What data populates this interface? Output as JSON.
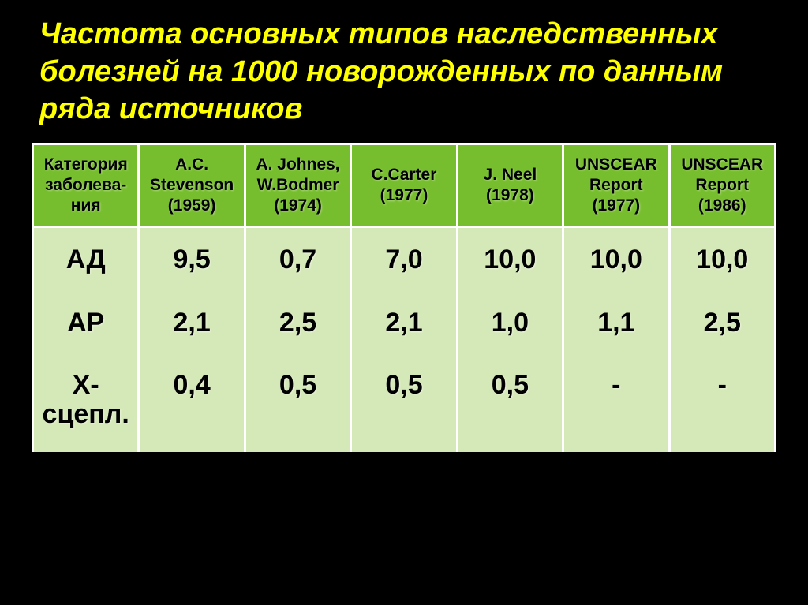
{
  "slide": {
    "title": "Частота основных типов наследственных болезней на 1000 новорожденных по данным ряда источников",
    "title_color": "#feff00",
    "background_color": "#000000"
  },
  "table": {
    "header_bg": "#77be2e",
    "body_bg": "#d5e8b8",
    "border_color": "#ffffff",
    "header_fontsize": 21,
    "body_fontsize": 34,
    "columns": [
      "Категория заболева-ния",
      "A.C. Stevenson (1959)",
      "A. Johnes, W.Bodmer (1974)",
      "C.Carter (1977)",
      "J. Neel (1978)",
      "UNSCEAR Report (1977)",
      "UNSCEAR Report (1986)"
    ],
    "rows": [
      {
        "category": "АД",
        "values": [
          "9,5",
          "0,7",
          "7,0",
          "10,0",
          "10,0",
          "10,0"
        ]
      },
      {
        "category": "АР",
        "values": [
          "2,1",
          "2,5",
          "2,1",
          "1,0",
          "1,1",
          "2,5"
        ]
      },
      {
        "category": "Х-сцепл.",
        "values": [
          "0,4",
          "0,5",
          "0,5",
          "0,5",
          "-",
          "-"
        ]
      }
    ]
  }
}
